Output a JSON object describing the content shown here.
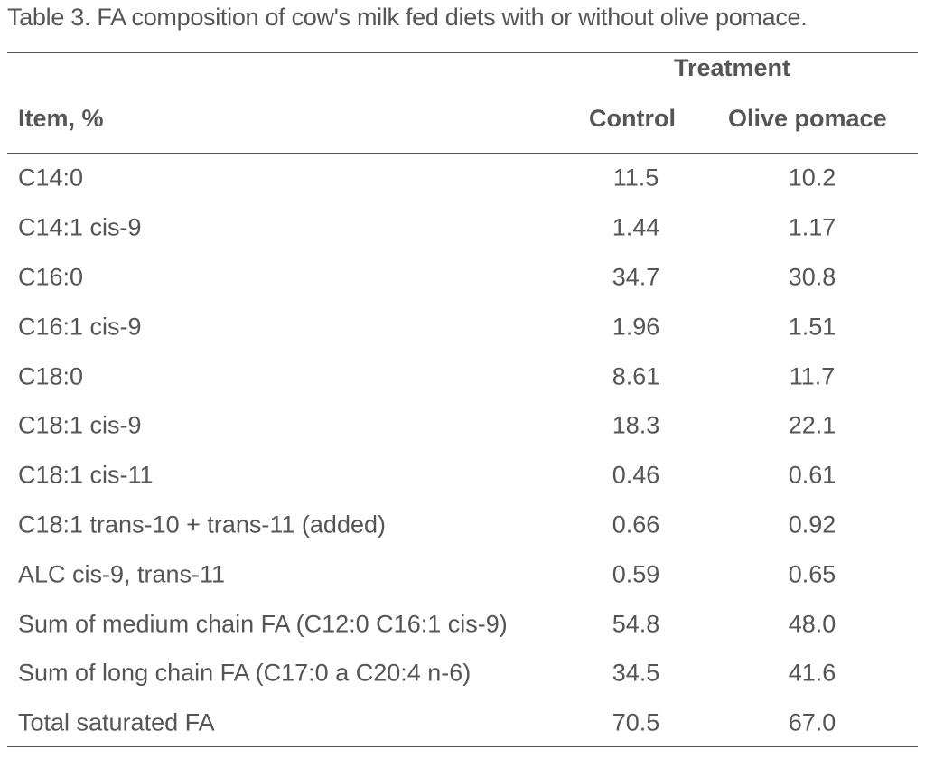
{
  "caption": "Table 3. FA composition of cow's milk fed diets with or without olive pomace.",
  "header": {
    "group": "Treatment",
    "item": "Item, %",
    "control": "Control",
    "olive": "Olive pomace"
  },
  "rows": [
    {
      "item": "C14:0",
      "control": "11.5",
      "olive": "10.2"
    },
    {
      "item": "C14:1 cis-9",
      "control": "1.44",
      "olive": "1.17"
    },
    {
      "item": "C16:0",
      "control": "34.7",
      "olive": "30.8"
    },
    {
      "item": "C16:1 cis-9",
      "control": "1.96",
      "olive": "1.51"
    },
    {
      "item": "C18:0",
      "control": "8.61",
      "olive": "11.7"
    },
    {
      "item": "C18:1 cis-9",
      "control": "18.3",
      "olive": "22.1"
    },
    {
      "item": "C18:1 cis-11",
      "control": "0.46",
      "olive": "0.61"
    },
    {
      "item": "C18:1 trans-10 + trans-11 (added)",
      "control": "0.66",
      "olive": "0.92"
    },
    {
      "item": "ALC cis-9, trans-11",
      "control": "0.59",
      "olive": "0.65"
    },
    {
      "item": "Sum of medium chain FA (C12:0 C16:1 cis-9)",
      "control": "54.8",
      "olive": "48.0"
    },
    {
      "item": "Sum of long chain FA (C17:0 a C20:4 n-6)",
      "control": "34.5",
      "olive": "41.6"
    },
    {
      "item": "Total saturated FA",
      "control": "70.5",
      "olive": "67.0"
    }
  ]
}
